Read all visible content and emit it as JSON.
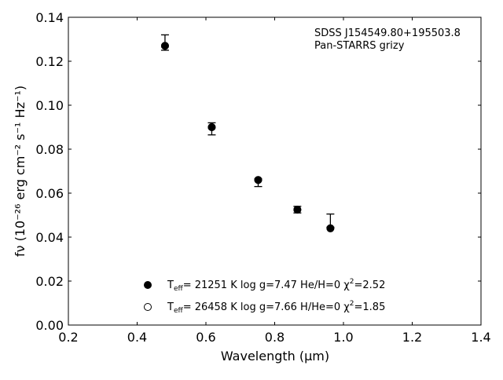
{
  "chart_data": {
    "type": "scatter",
    "title": "",
    "xlabel": "Wavelength (μm)",
    "ylabel": "fν (10⁻²⁶ erg cm⁻² s⁻¹ Hz⁻¹)",
    "xlim": [
      0.2,
      1.4
    ],
    "ylim": [
      0.0,
      0.14
    ],
    "x_ticks": [
      0.2,
      0.4,
      0.6,
      0.8,
      1.0,
      1.2,
      1.4
    ],
    "x_tick_labels": [
      "0.2",
      "0.4",
      "0.6",
      "0.8",
      "1.0",
      "1.2",
      "1.4"
    ],
    "y_ticks": [
      0.0,
      0.02,
      0.04,
      0.06,
      0.08,
      0.1,
      0.12,
      0.14
    ],
    "y_tick_labels": [
      "0.00",
      "0.02",
      "0.04",
      "0.06",
      "0.08",
      "0.10",
      "0.12",
      "0.14"
    ],
    "grid": false,
    "annotation": [
      "SDSS J154549.80+195503.8",
      "Pan-STARRS grizy"
    ],
    "observed": {
      "x": [
        0.481,
        0.617,
        0.752,
        0.866,
        0.962
      ],
      "y": [
        0.1275,
        0.09,
        0.0655,
        0.0525,
        0.046
      ],
      "yerr_low": [
        0.0025,
        0.0035,
        0.0025,
        0.0015,
        0.0015
      ],
      "yerr_high": [
        0.0045,
        0.002,
        0.001,
        0.0015,
        0.0045
      ]
    },
    "series": [
      {
        "values": [
          0.127,
          0.09,
          0.066,
          0.0525,
          0.044
        ],
        "x": [
          0.481,
          0.617,
          0.752,
          0.866,
          0.962
        ],
        "marker": "filled-circle",
        "label_parts": [
          "T",
          "eff",
          "= 21251 K  log g=7.47  He/H=0  χ",
          "2",
          "=2.52"
        ]
      },
      {
        "values": [
          0.127,
          0.09,
          0.066,
          0.0525,
          0.044
        ],
        "x": [
          0.481,
          0.617,
          0.752,
          0.866,
          0.962
        ],
        "marker": "open-circle",
        "label_parts": [
          "T",
          "eff",
          "= 26458 K  log g=7.66  H/He=0  χ",
          "2",
          "=1.85"
        ]
      }
    ],
    "legend_position": "bottom-center"
  },
  "colors": {
    "marker": "#000000",
    "axis": "#000000",
    "background": "#ffffff"
  }
}
